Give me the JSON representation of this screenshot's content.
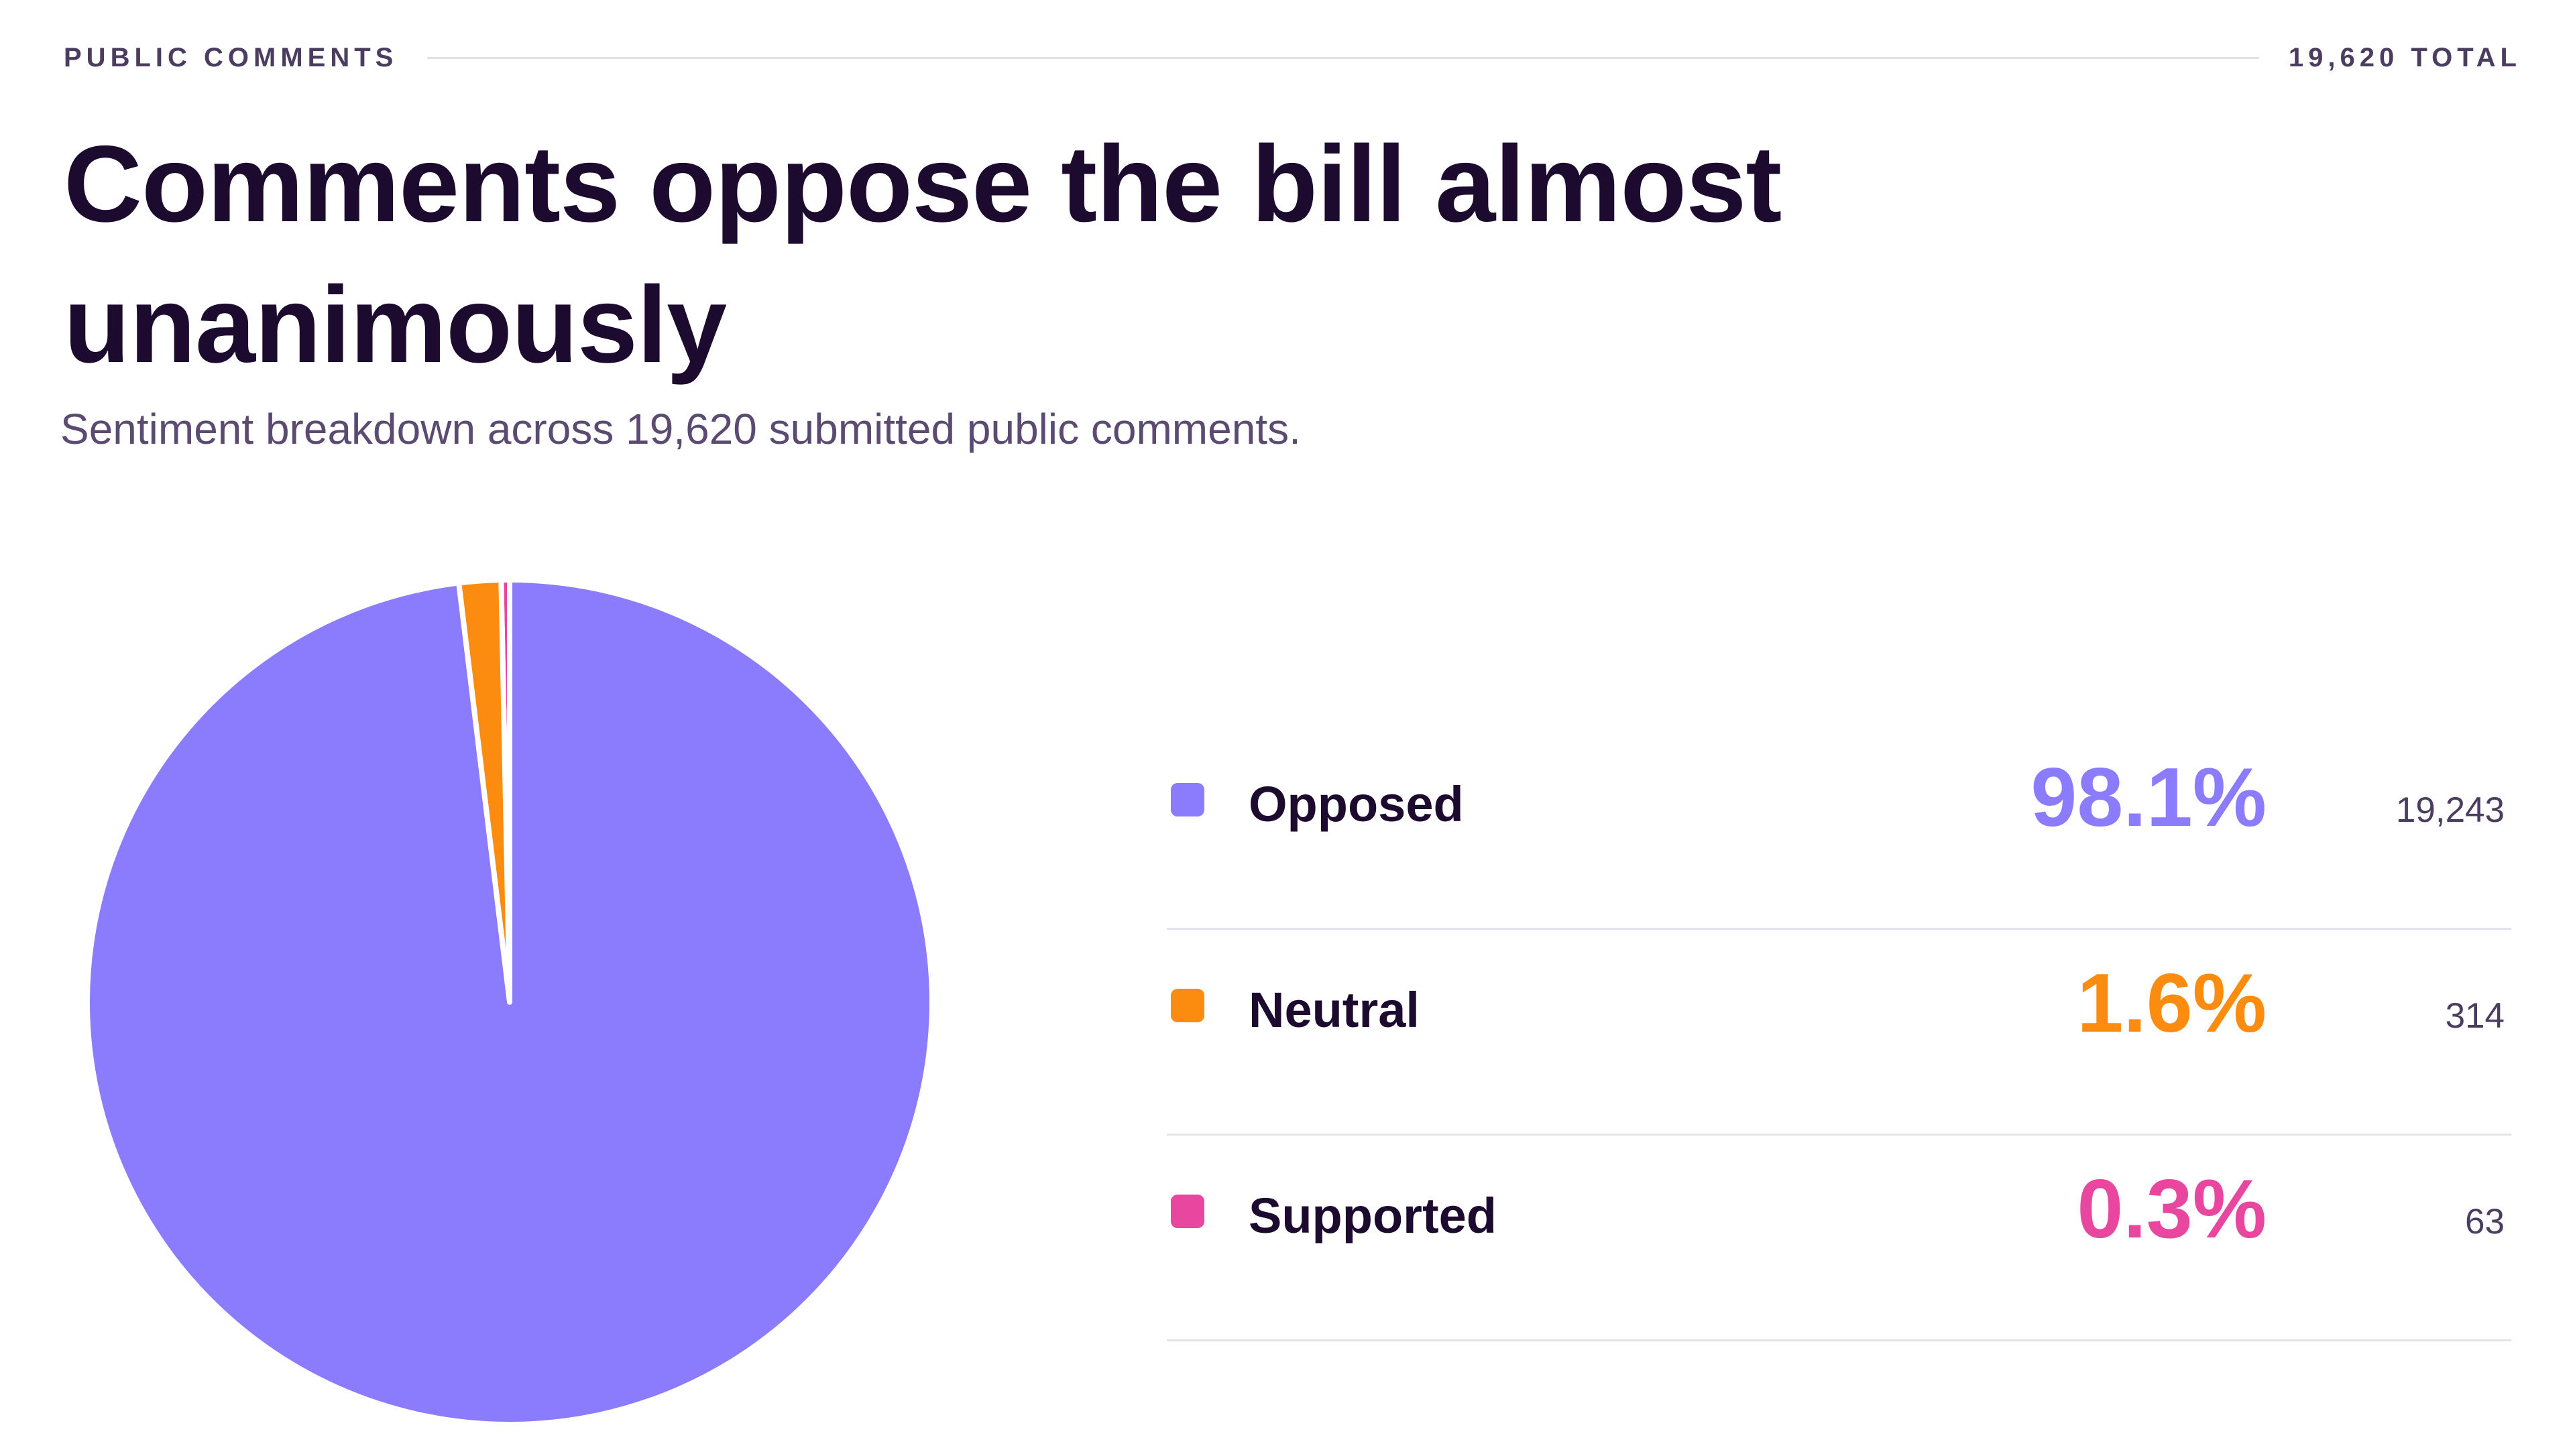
{
  "header": {
    "kicker": "PUBLIC COMMENTS",
    "total": "19,620 TOTAL",
    "title": "Comments oppose the bill almost unanimously",
    "subtitle": "Sentiment breakdown across 19,620 submitted public comments."
  },
  "legend": [
    {
      "label": "Opposed",
      "percent": "98.1%",
      "count": "19,243",
      "color": "#8b7bfd"
    },
    {
      "label": "Neutral",
      "percent": "1.6%",
      "count": "314",
      "color": "#fb8c10"
    },
    {
      "label": "Supported",
      "percent": "0.3%",
      "count": "63",
      "color": "#e8469f"
    }
  ],
  "chart_data": {
    "type": "pie",
    "title": "Comments oppose the bill almost unanimously",
    "subtitle": "Sentiment breakdown across 19,620 submitted public comments.",
    "categories": [
      "Opposed",
      "Neutral",
      "Supported"
    ],
    "values": [
      19243,
      314,
      63
    ],
    "percentages": [
      98.1,
      1.6,
      0.3
    ],
    "total": 19620,
    "colors": [
      "#8b7bfd",
      "#fb8c10",
      "#e8469f"
    ],
    "legend": "right"
  }
}
